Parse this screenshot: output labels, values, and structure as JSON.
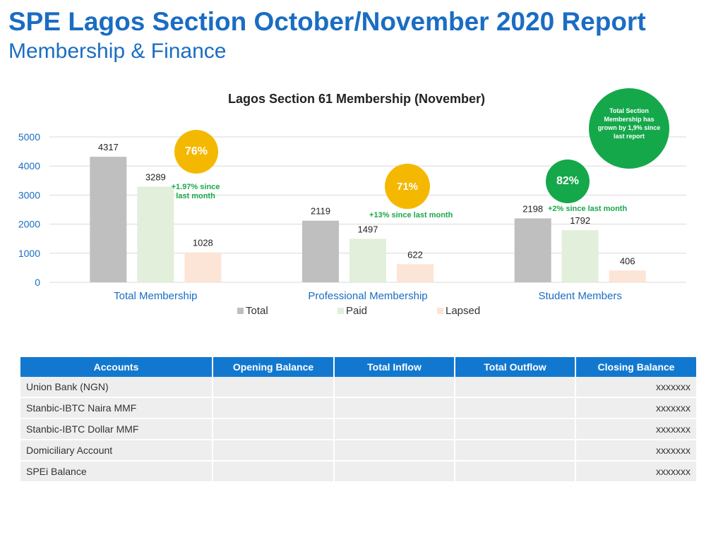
{
  "header": {
    "title": "SPE Lagos Section October/November 2020 Report",
    "subtitle": "Membership & Finance"
  },
  "chart_data": {
    "type": "bar",
    "title": "Lagos Section 61 Membership (November)",
    "categories": [
      "Total Membership",
      "Professional Membership",
      "Student Members"
    ],
    "series": [
      {
        "name": "Total",
        "color": "#bfbfbf",
        "values": [
          4317,
          2119,
          2198
        ]
      },
      {
        "name": "Paid",
        "color": "#e2efda",
        "values": [
          3289,
          1497,
          1792
        ]
      },
      {
        "name": "Lapsed",
        "color": "#fce4d6",
        "values": [
          1028,
          622,
          406
        ]
      }
    ],
    "yticks": [
      "0",
      "1000",
      "2000",
      "3000",
      "4000",
      "5000"
    ],
    "ylim": [
      0,
      5000
    ],
    "grid": true,
    "legend": "bottom"
  },
  "annotations": {
    "bubbles": [
      {
        "text": "76%",
        "color": "#f5b800"
      },
      {
        "text": "71%",
        "color": "#f5b800"
      },
      {
        "text": "82%",
        "color": "#15a84b"
      },
      {
        "text": "Total Section Membership has grown by 1,9% since last report",
        "color": "#15a84b"
      }
    ],
    "notes": [
      "+1.97% since last month",
      "+13% since last month",
      "+2% since last month"
    ]
  },
  "accounts_table": {
    "headers": [
      "Accounts",
      "Opening Balance",
      "Total Inflow",
      "Total Outflow",
      "Closing Balance"
    ],
    "rows": [
      {
        "account": "Union Bank (NGN)",
        "opening": "",
        "inflow": "",
        "outflow": "",
        "closing": "xxxxxxx"
      },
      {
        "account": "Stanbic-IBTC Naira MMF",
        "opening": "",
        "inflow": "",
        "outflow": "",
        "closing": "xxxxxxx"
      },
      {
        "account": "Stanbic-IBTC Dollar MMF",
        "opening": "",
        "inflow": "",
        "outflow": "",
        "closing": "xxxxxxx"
      },
      {
        "account": "Domiciliary Account",
        "opening": "",
        "inflow": "",
        "outflow": "",
        "closing": "xxxxxxx"
      },
      {
        "account": "SPEi Balance",
        "opening": "",
        "inflow": "",
        "outflow": "",
        "closing": "xxxxxxx"
      }
    ]
  }
}
